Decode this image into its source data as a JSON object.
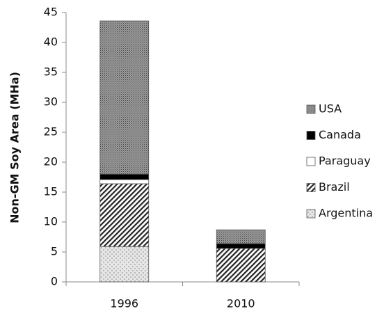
{
  "chart_data": {
    "type": "bar",
    "stacked": true,
    "y_label": "Non-GM Soy Area (MHa)",
    "categories": [
      "1996",
      "2010"
    ],
    "series": [
      {
        "name": "Argentina",
        "color": "#e6e6e6",
        "pattern": "dots",
        "values": [
          5.9,
          0
        ]
      },
      {
        "name": "Brazil",
        "color": "#ffffff",
        "pattern": "hatch",
        "values": [
          10.5,
          5.6
        ]
      },
      {
        "name": "Paraguay",
        "color": "#ffffff",
        "pattern": "solid",
        "values": [
          0.7,
          0
        ]
      },
      {
        "name": "Canada",
        "color": "#000000",
        "pattern": "solid",
        "values": [
          0.9,
          0.8
        ]
      },
      {
        "name": "USA",
        "color": "#8c8c8c",
        "pattern": "dense",
        "values": [
          25.6,
          2.3
        ]
      }
    ],
    "ylim": [
      0,
      45
    ],
    "yticks": [
      0,
      5,
      10,
      15,
      20,
      25,
      30,
      35,
      40,
      45
    ],
    "legend": "right"
  }
}
